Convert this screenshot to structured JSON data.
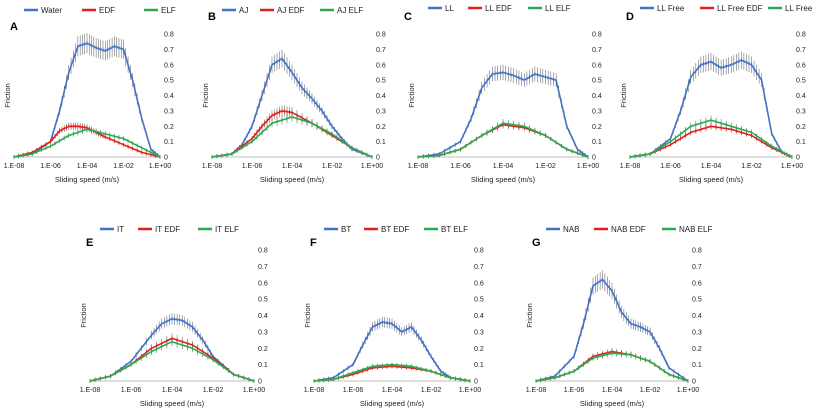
{
  "chart_data": [
    {
      "type": "line",
      "panel": "A",
      "series": [
        {
          "name": "Water",
          "color": "#4472C4",
          "x": [
            -8,
            -7,
            -6,
            -5.5,
            -5,
            -4.5,
            -4,
            -3.5,
            -3,
            -2.5,
            -2,
            -1.5,
            -1,
            -0.5,
            0
          ],
          "values": [
            0.0,
            0.02,
            0.1,
            0.3,
            0.55,
            0.72,
            0.74,
            0.71,
            0.69,
            0.72,
            0.7,
            0.5,
            0.25,
            0.05,
            0.0
          ]
        },
        {
          "name": "EDF",
          "color": "#E02020",
          "x": [
            -8,
            -7,
            -6,
            -5.5,
            -5,
            -4.5,
            -4,
            -3.5,
            -3,
            -2,
            -1,
            0
          ],
          "values": [
            0.0,
            0.03,
            0.1,
            0.17,
            0.2,
            0.2,
            0.19,
            0.16,
            0.13,
            0.08,
            0.03,
            0.0
          ]
        },
        {
          "name": "ELF",
          "color": "#2EA84F",
          "x": [
            -8,
            -7,
            -6,
            -5,
            -4,
            -3,
            -2,
            -1,
            0
          ],
          "values": [
            0.0,
            0.02,
            0.07,
            0.14,
            0.18,
            0.15,
            0.12,
            0.06,
            0.0
          ]
        }
      ],
      "xticks": [
        "1.E-08",
        "1.E-06",
        "1.E-04",
        "1.E-02",
        "1.E+00"
      ],
      "yticks": [
        "0.8",
        "0.7",
        "0.6",
        "0.5",
        "0.4",
        "0.3",
        "0.2",
        "0.1",
        "0"
      ],
      "ylim": [
        0,
        0.8
      ],
      "xlabel": "Sliding speed (m/s)",
      "ylabel": "Friction"
    },
    {
      "type": "line",
      "panel": "B",
      "series": [
        {
          "name": "AJ",
          "color": "#4472C4",
          "x": [
            -8,
            -7,
            -6.5,
            -6,
            -5.5,
            -5,
            -4.5,
            -4,
            -3.5,
            -3,
            -2.5,
            -2,
            -1.5,
            -1,
            0
          ],
          "values": [
            0.0,
            0.02,
            0.08,
            0.2,
            0.4,
            0.6,
            0.64,
            0.55,
            0.45,
            0.38,
            0.3,
            0.2,
            0.12,
            0.05,
            0.0
          ]
        },
        {
          "name": "AJ EDF",
          "color": "#E02020",
          "x": [
            -8,
            -7,
            -6,
            -5.5,
            -5,
            -4.5,
            -4,
            -3,
            -2,
            -1,
            0
          ],
          "values": [
            0.0,
            0.02,
            0.12,
            0.2,
            0.27,
            0.3,
            0.29,
            0.22,
            0.14,
            0.06,
            0.0
          ]
        },
        {
          "name": "AJ ELF",
          "color": "#2EA84F",
          "x": [
            -8,
            -7,
            -6,
            -5,
            -4,
            -3,
            -2,
            -1,
            0
          ],
          "values": [
            0.0,
            0.02,
            0.1,
            0.22,
            0.26,
            0.22,
            0.15,
            0.06,
            0.0
          ]
        }
      ],
      "xticks": [
        "1.E-08",
        "1.E-06",
        "1.E-04",
        "1.E-02",
        "1.E+00"
      ],
      "yticks": [
        "0.8",
        "0.7",
        "0.6",
        "0.5",
        "0.4",
        "0.3",
        "0.2",
        "0.1",
        "0"
      ],
      "ylim": [
        0,
        0.8
      ],
      "xlabel": "Sliding speed (m/s)",
      "ylabel": "Friction"
    },
    {
      "type": "line",
      "panel": "C",
      "series": [
        {
          "name": "LL",
          "color": "#4472C4",
          "x": [
            -8,
            -7,
            -6,
            -5.5,
            -5,
            -4.5,
            -4,
            -3.5,
            -3,
            -2.5,
            -2,
            -1.5,
            -1,
            -0.5,
            0
          ],
          "values": [
            0.0,
            0.02,
            0.1,
            0.25,
            0.45,
            0.54,
            0.55,
            0.53,
            0.5,
            0.54,
            0.52,
            0.5,
            0.2,
            0.05,
            0.0
          ]
        },
        {
          "name": "LL EDF",
          "color": "#E02020",
          "x": [
            -8,
            -7,
            -6,
            -5,
            -4,
            -3,
            -2,
            -1,
            0
          ],
          "values": [
            0.0,
            0.01,
            0.05,
            0.14,
            0.21,
            0.19,
            0.14,
            0.05,
            0.0
          ]
        },
        {
          "name": "LL ELF",
          "color": "#2EA84F",
          "x": [
            -8,
            -7,
            -6,
            -5,
            -4,
            -3,
            -2,
            -1,
            0
          ],
          "values": [
            0.0,
            0.01,
            0.05,
            0.14,
            0.22,
            0.2,
            0.14,
            0.05,
            0.0
          ]
        }
      ],
      "xticks": [
        "1.E-08",
        "1.E-06",
        "1.E-04",
        "1.E-02",
        "1.E+00"
      ],
      "yticks": [
        "0.8",
        "0.7",
        "0.6",
        "0.5",
        "0.4",
        "0.3",
        "0.2",
        "0.1",
        "0"
      ],
      "ylim": [
        0,
        0.8
      ],
      "xlabel": "Sliding speed (m/s)",
      "ylabel": "Friction"
    },
    {
      "type": "line",
      "panel": "D",
      "series": [
        {
          "name": "LL Free",
          "color": "#4472C4",
          "x": [
            -8,
            -7,
            -6,
            -5.5,
            -5,
            -4.5,
            -4,
            -3.5,
            -3,
            -2.5,
            -2,
            -1.5,
            -1,
            -0.5,
            0
          ],
          "values": [
            0.0,
            0.02,
            0.12,
            0.3,
            0.52,
            0.6,
            0.62,
            0.58,
            0.6,
            0.63,
            0.6,
            0.5,
            0.15,
            0.03,
            0.0
          ]
        },
        {
          "name": "LL Free EDF",
          "color": "#E02020",
          "x": [
            -8,
            -7,
            -6,
            -5,
            -4,
            -3,
            -2,
            -1,
            0
          ],
          "values": [
            0.0,
            0.02,
            0.08,
            0.16,
            0.2,
            0.18,
            0.14,
            0.06,
            0.0
          ]
        },
        {
          "name": "LL Free ELF",
          "color": "#2EA84F",
          "x": [
            -8,
            -7,
            -6,
            -5,
            -4,
            -3,
            -2,
            -1,
            0
          ],
          "values": [
            0.0,
            0.02,
            0.1,
            0.2,
            0.24,
            0.2,
            0.16,
            0.07,
            0.0
          ]
        }
      ],
      "xticks": [
        "1.E-08",
        "1.E-06",
        "1.E-04",
        "1.E-02",
        "1.E+00"
      ],
      "yticks": [
        "0.8",
        "0.7",
        "0.6",
        "0.5",
        "0.4",
        "0.3",
        "0.2",
        "0.1",
        "0"
      ],
      "ylim": [
        0,
        0.8
      ],
      "xlabel": "Sliding speed (m/s)",
      "ylabel": "Friction"
    },
    {
      "type": "line",
      "panel": "E",
      "series": [
        {
          "name": "IT",
          "color": "#4472C4",
          "x": [
            -8,
            -7,
            -6,
            -5,
            -4.5,
            -4,
            -3.5,
            -3,
            -2.5,
            -2,
            -1,
            0
          ],
          "values": [
            0.0,
            0.03,
            0.12,
            0.28,
            0.35,
            0.38,
            0.37,
            0.33,
            0.25,
            0.15,
            0.04,
            0.0
          ]
        },
        {
          "name": "IT EDF",
          "color": "#E02020",
          "x": [
            -8,
            -7,
            -6,
            -5,
            -4,
            -3,
            -2,
            -1,
            0
          ],
          "values": [
            0.0,
            0.03,
            0.1,
            0.2,
            0.26,
            0.22,
            0.14,
            0.04,
            0.0
          ]
        },
        {
          "name": "IT ELF",
          "color": "#2EA84F",
          "x": [
            -8,
            -7,
            -6,
            -5,
            -4,
            -3,
            -2,
            -1,
            0
          ],
          "values": [
            0.0,
            0.03,
            0.1,
            0.18,
            0.24,
            0.2,
            0.13,
            0.04,
            0.0
          ]
        }
      ],
      "xticks": [
        "1.E-08",
        "1.E-06",
        "1.E-04",
        "1.E-02",
        "1.E+00"
      ],
      "yticks": [
        "0.8",
        "0.7",
        "0.6",
        "0.5",
        "0.4",
        "0.3",
        "0.2",
        "0.1",
        "0"
      ],
      "ylim": [
        0,
        0.8
      ],
      "xlabel": "Sliding speed (m/s)",
      "ylabel": "Friction"
    },
    {
      "type": "line",
      "panel": "F",
      "series": [
        {
          "name": "BT",
          "color": "#4472C4",
          "x": [
            -8,
            -7,
            -6,
            -5.5,
            -5,
            -4.5,
            -4,
            -3.5,
            -3,
            -2.5,
            -2,
            -1.5,
            -1,
            0
          ],
          "values": [
            0.0,
            0.02,
            0.1,
            0.22,
            0.33,
            0.36,
            0.35,
            0.3,
            0.33,
            0.25,
            0.15,
            0.06,
            0.02,
            0.0
          ]
        },
        {
          "name": "BT EDF",
          "color": "#E02020",
          "x": [
            -8,
            -7,
            -6,
            -5,
            -4,
            -3,
            -2,
            -1,
            0
          ],
          "values": [
            0.0,
            0.01,
            0.04,
            0.08,
            0.09,
            0.08,
            0.06,
            0.02,
            0.0
          ]
        },
        {
          "name": "BT ELF",
          "color": "#2EA84F",
          "x": [
            -8,
            -7,
            -6,
            -5,
            -4,
            -3,
            -2,
            -1,
            0
          ],
          "values": [
            0.0,
            0.01,
            0.05,
            0.09,
            0.1,
            0.09,
            0.06,
            0.02,
            0.0
          ]
        }
      ],
      "xticks": [
        "1.E-08",
        "1.E-06",
        "1.E-04",
        "1.E-02",
        "1.E+00"
      ],
      "yticks": [
        "0.8",
        "0.7",
        "0.6",
        "0.5",
        "0.4",
        "0.3",
        "0.2",
        "0.1",
        "0"
      ],
      "ylim": [
        0,
        0.8
      ],
      "xlabel": "Sliding speed (m/s)",
      "ylabel": "Friction"
    },
    {
      "type": "line",
      "panel": "G",
      "series": [
        {
          "name": "NAB",
          "color": "#4472C4",
          "x": [
            -8,
            -7,
            -6,
            -5.5,
            -5,
            -4.5,
            -4,
            -3.5,
            -3,
            -2.5,
            -2,
            -1.5,
            -1,
            0
          ],
          "values": [
            0.0,
            0.03,
            0.15,
            0.35,
            0.58,
            0.62,
            0.55,
            0.42,
            0.35,
            0.33,
            0.3,
            0.2,
            0.08,
            0.0
          ]
        },
        {
          "name": "NAB EDF",
          "color": "#E02020",
          "x": [
            -8,
            -7,
            -6,
            -5,
            -4,
            -3,
            -2,
            -1,
            0
          ],
          "values": [
            0.0,
            0.02,
            0.06,
            0.15,
            0.18,
            0.16,
            0.12,
            0.04,
            0.0
          ]
        },
        {
          "name": "NAB ELF",
          "color": "#2EA84F",
          "x": [
            -8,
            -7,
            -6,
            -5,
            -4,
            -3,
            -2,
            -1,
            0
          ],
          "values": [
            0.0,
            0.02,
            0.06,
            0.14,
            0.17,
            0.16,
            0.12,
            0.04,
            0.0
          ]
        }
      ],
      "xticks": [
        "1.E-08",
        "1.E-06",
        "1.E-04",
        "1.E-02",
        "1.E+00"
      ],
      "yticks": [
        "0.8",
        "0.7",
        "0.6",
        "0.5",
        "0.4",
        "0.3",
        "0.2",
        "0.1",
        "0"
      ],
      "ylim": [
        0,
        0.8
      ],
      "xlabel": "Sliding speed (m/s)",
      "ylabel": "Friction"
    }
  ]
}
